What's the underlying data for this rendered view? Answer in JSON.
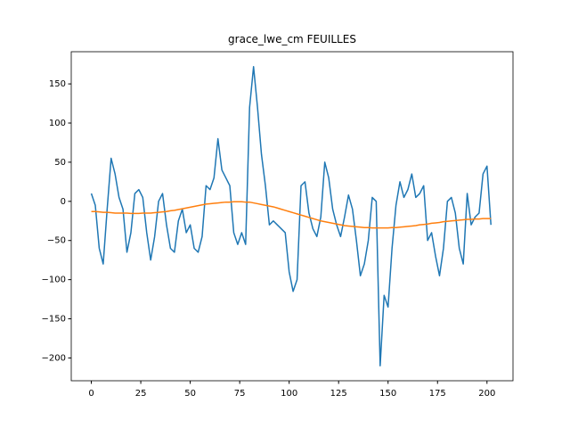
{
  "chart_data": {
    "type": "line",
    "title": "grace_lwe_cm FEUILLES",
    "x": [
      0,
      2,
      4,
      6,
      8,
      10,
      12,
      14,
      16,
      18,
      20,
      22,
      24,
      26,
      28,
      30,
      32,
      34,
      36,
      38,
      40,
      42,
      44,
      46,
      48,
      50,
      52,
      54,
      56,
      58,
      60,
      62,
      64,
      66,
      68,
      70,
      72,
      74,
      76,
      78,
      80,
      82,
      84,
      86,
      88,
      90,
      92,
      94,
      96,
      98,
      100,
      102,
      104,
      106,
      108,
      110,
      112,
      114,
      116,
      118,
      120,
      122,
      124,
      126,
      128,
      130,
      132,
      134,
      136,
      138,
      140,
      142,
      144,
      146,
      148,
      150,
      152,
      154,
      156,
      158,
      160,
      162,
      164,
      166,
      168,
      170,
      172,
      174,
      176,
      178,
      180,
      182,
      184,
      186,
      188,
      190,
      192,
      194,
      196,
      198,
      200,
      202
    ],
    "series": [
      {
        "color": "#1f77b4",
        "values": [
          10,
          -5,
          -60,
          -80,
          -10,
          55,
          35,
          5,
          -10,
          -65,
          -40,
          10,
          15,
          5,
          -40,
          -75,
          -45,
          0,
          10,
          -30,
          -60,
          -65,
          -25,
          -10,
          -40,
          -30,
          -60,
          -65,
          -45,
          20,
          15,
          30,
          80,
          40,
          30,
          20,
          -40,
          -55,
          -40,
          -55,
          120,
          172,
          120,
          60,
          20,
          -30,
          -25,
          -30,
          -35,
          -40,
          -90,
          -115,
          -100,
          20,
          25,
          -15,
          -35,
          -45,
          -20,
          50,
          30,
          -10,
          -30,
          -45,
          -20,
          8,
          -10,
          -50,
          -95,
          -80,
          -50,
          5,
          0,
          -210,
          -120,
          -135,
          -60,
          -5,
          25,
          5,
          15,
          35,
          5,
          10,
          20,
          -50,
          -40,
          -70,
          -95,
          -60,
          0,
          5,
          -15,
          -60,
          -80,
          10,
          -30,
          -20,
          -15,
          35,
          45,
          -30
        ]
      },
      {
        "color": "#ff7f0e",
        "values": [
          -13,
          -13,
          -13.5,
          -14,
          -14,
          -14.5,
          -15,
          -15,
          -15,
          -15,
          -15.5,
          -15.5,
          -15.5,
          -15,
          -15,
          -15,
          -14.5,
          -14,
          -13.5,
          -13,
          -12,
          -11.5,
          -10.5,
          -9.5,
          -8.5,
          -7.5,
          -6.5,
          -5.5,
          -4.5,
          -3.5,
          -3,
          -2.5,
          -2,
          -1.5,
          -1,
          -1,
          -0.5,
          -0.5,
          -0.5,
          -1,
          -1,
          -2,
          -3,
          -4,
          -5,
          -6,
          -7,
          -8.5,
          -10,
          -11.5,
          -13,
          -14.5,
          -16,
          -17.5,
          -19,
          -20.5,
          -22,
          -23.5,
          -25,
          -26,
          -27,
          -28,
          -29,
          -30,
          -31,
          -31.5,
          -32,
          -32.5,
          -33,
          -33.5,
          -33.5,
          -34,
          -34,
          -34,
          -34,
          -34,
          -33.5,
          -33.5,
          -33,
          -32.5,
          -32,
          -31.5,
          -31,
          -30,
          -29.5,
          -29,
          -28,
          -27.5,
          -27,
          -26,
          -25.5,
          -25,
          -24.5,
          -24,
          -23.5,
          -23,
          -23,
          -22.5,
          -22.5,
          -22,
          -22,
          -22
        ]
      }
    ],
    "xlim": [
      -10.15,
      213.15
    ],
    "xticks": [
      0,
      25,
      50,
      75,
      100,
      125,
      150,
      175,
      200
    ],
    "ylim": [
      -229.1,
      191.1
    ],
    "yticks": [
      {
        "value": -200,
        "label": "−200"
      },
      {
        "value": -150,
        "label": "−150"
      },
      {
        "value": -100,
        "label": "−100"
      },
      {
        "value": -50,
        "label": "−50"
      },
      0,
      50,
      100,
      150
    ],
    "grid": false
  }
}
